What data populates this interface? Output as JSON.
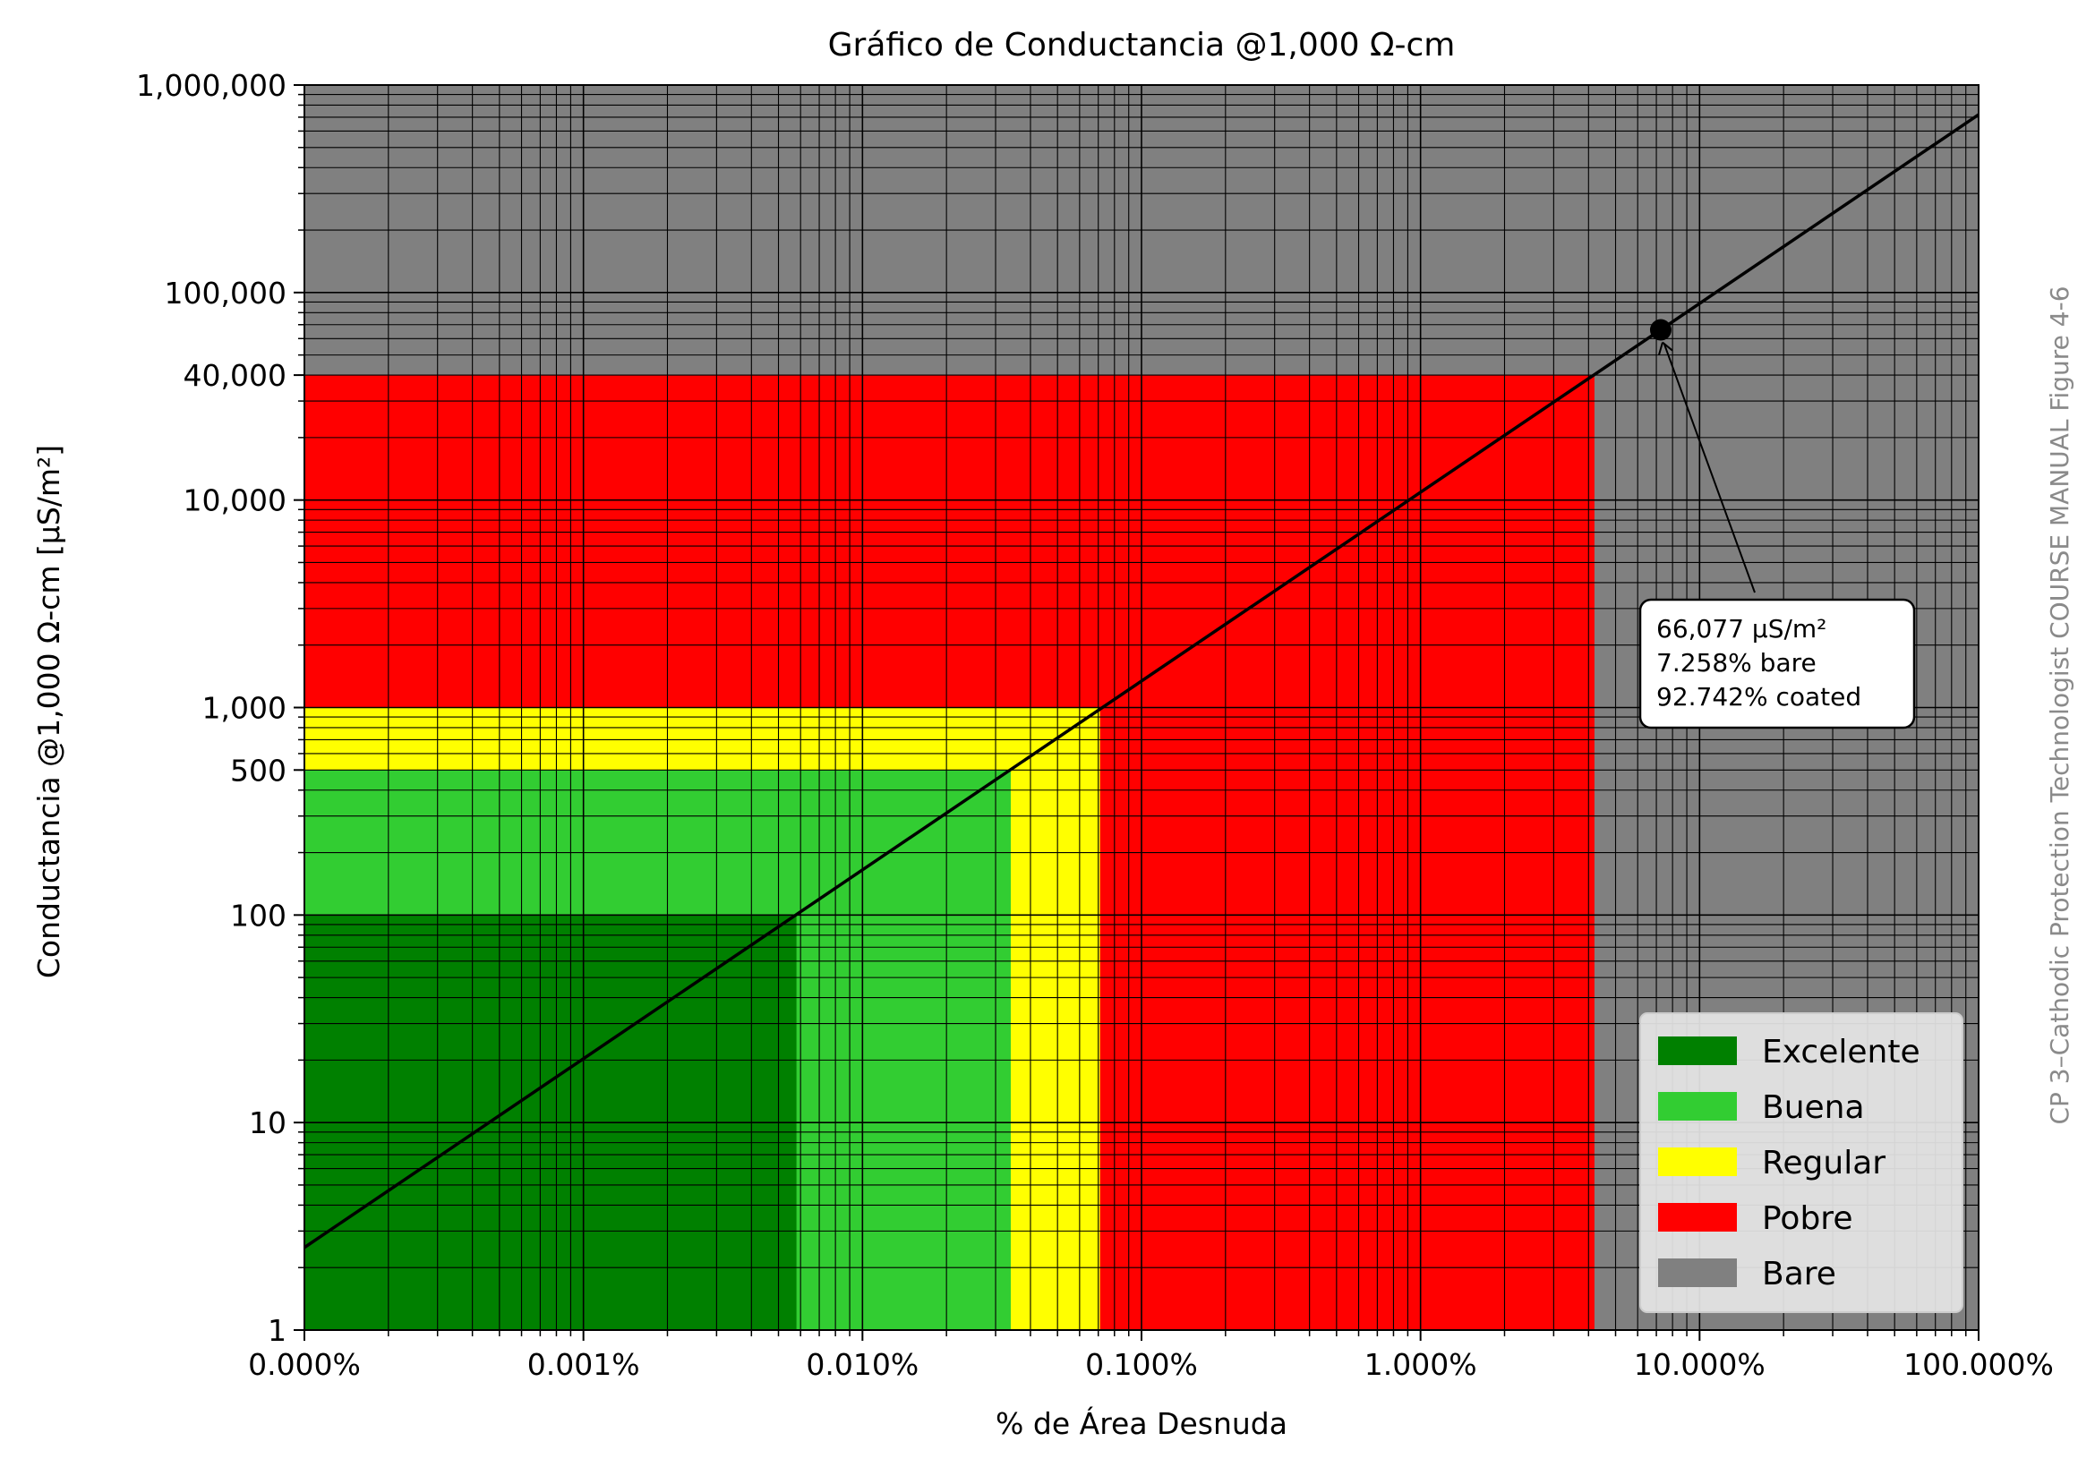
{
  "chart_data": {
    "type": "area",
    "title": "Gráfico de Conductancia @1,000 Ω-cm",
    "xlabel": "% de Área Desnuda",
    "ylabel": "Conductancia @1,000 Ω-cm [μS/m²]",
    "x_scale": "log",
    "y_scale": "log",
    "xlim_percent": [
      0.0001,
      100
    ],
    "ylim": [
      1,
      1000000
    ],
    "x_tick_labels": [
      "0.000%",
      "0.001%",
      "0.010%",
      "0.100%",
      "1.000%",
      "10.000%",
      "100.000%"
    ],
    "y_tick_labels": [
      "1",
      "10",
      "100",
      "500",
      "1,000",
      "10,000",
      "40,000",
      "100,000",
      "1,000,000"
    ],
    "grid": true,
    "legend_position": "lower-right",
    "regions": [
      {
        "name": "Bare",
        "color": "#808080",
        "x_max_percent": 100,
        "y_max": 1000000
      },
      {
        "name": "Pobre",
        "color": "#ff0000",
        "x_max_percent": 4.2,
        "y_max": 40000
      },
      {
        "name": "Regular",
        "color": "#ffff00",
        "x_max_percent": 0.071,
        "y_max": 1000
      },
      {
        "name": "Buena",
        "color": "#32cd32",
        "x_max_percent": 0.034,
        "y_max": 500
      },
      {
        "name": "Excelente",
        "color": "#008000",
        "x_max_percent": 0.0058,
        "y_max": 100
      }
    ],
    "line": {
      "color": "#000000",
      "x_percent": [
        0.0001,
        100
      ],
      "y": [
        2.5,
        720000
      ]
    },
    "marker": {
      "x_percent": 7.258,
      "y": 66077
    },
    "annotation": {
      "lines": [
        "66,077 μS/m²",
        "7.258% bare",
        "92.742% coated"
      ]
    },
    "legend": [
      {
        "label": "Excelente",
        "color": "#008000"
      },
      {
        "label": "Buena",
        "color": "#32cd32"
      },
      {
        "label": "Regular",
        "color": "#ffff00"
      },
      {
        "label": "Pobre",
        "color": "#ff0000"
      },
      {
        "label": "Bare",
        "color": "#808080"
      }
    ],
    "side_note": "CP 3–Cathodic Protection Technologist COURSE MANUAL Figure 4-6"
  }
}
